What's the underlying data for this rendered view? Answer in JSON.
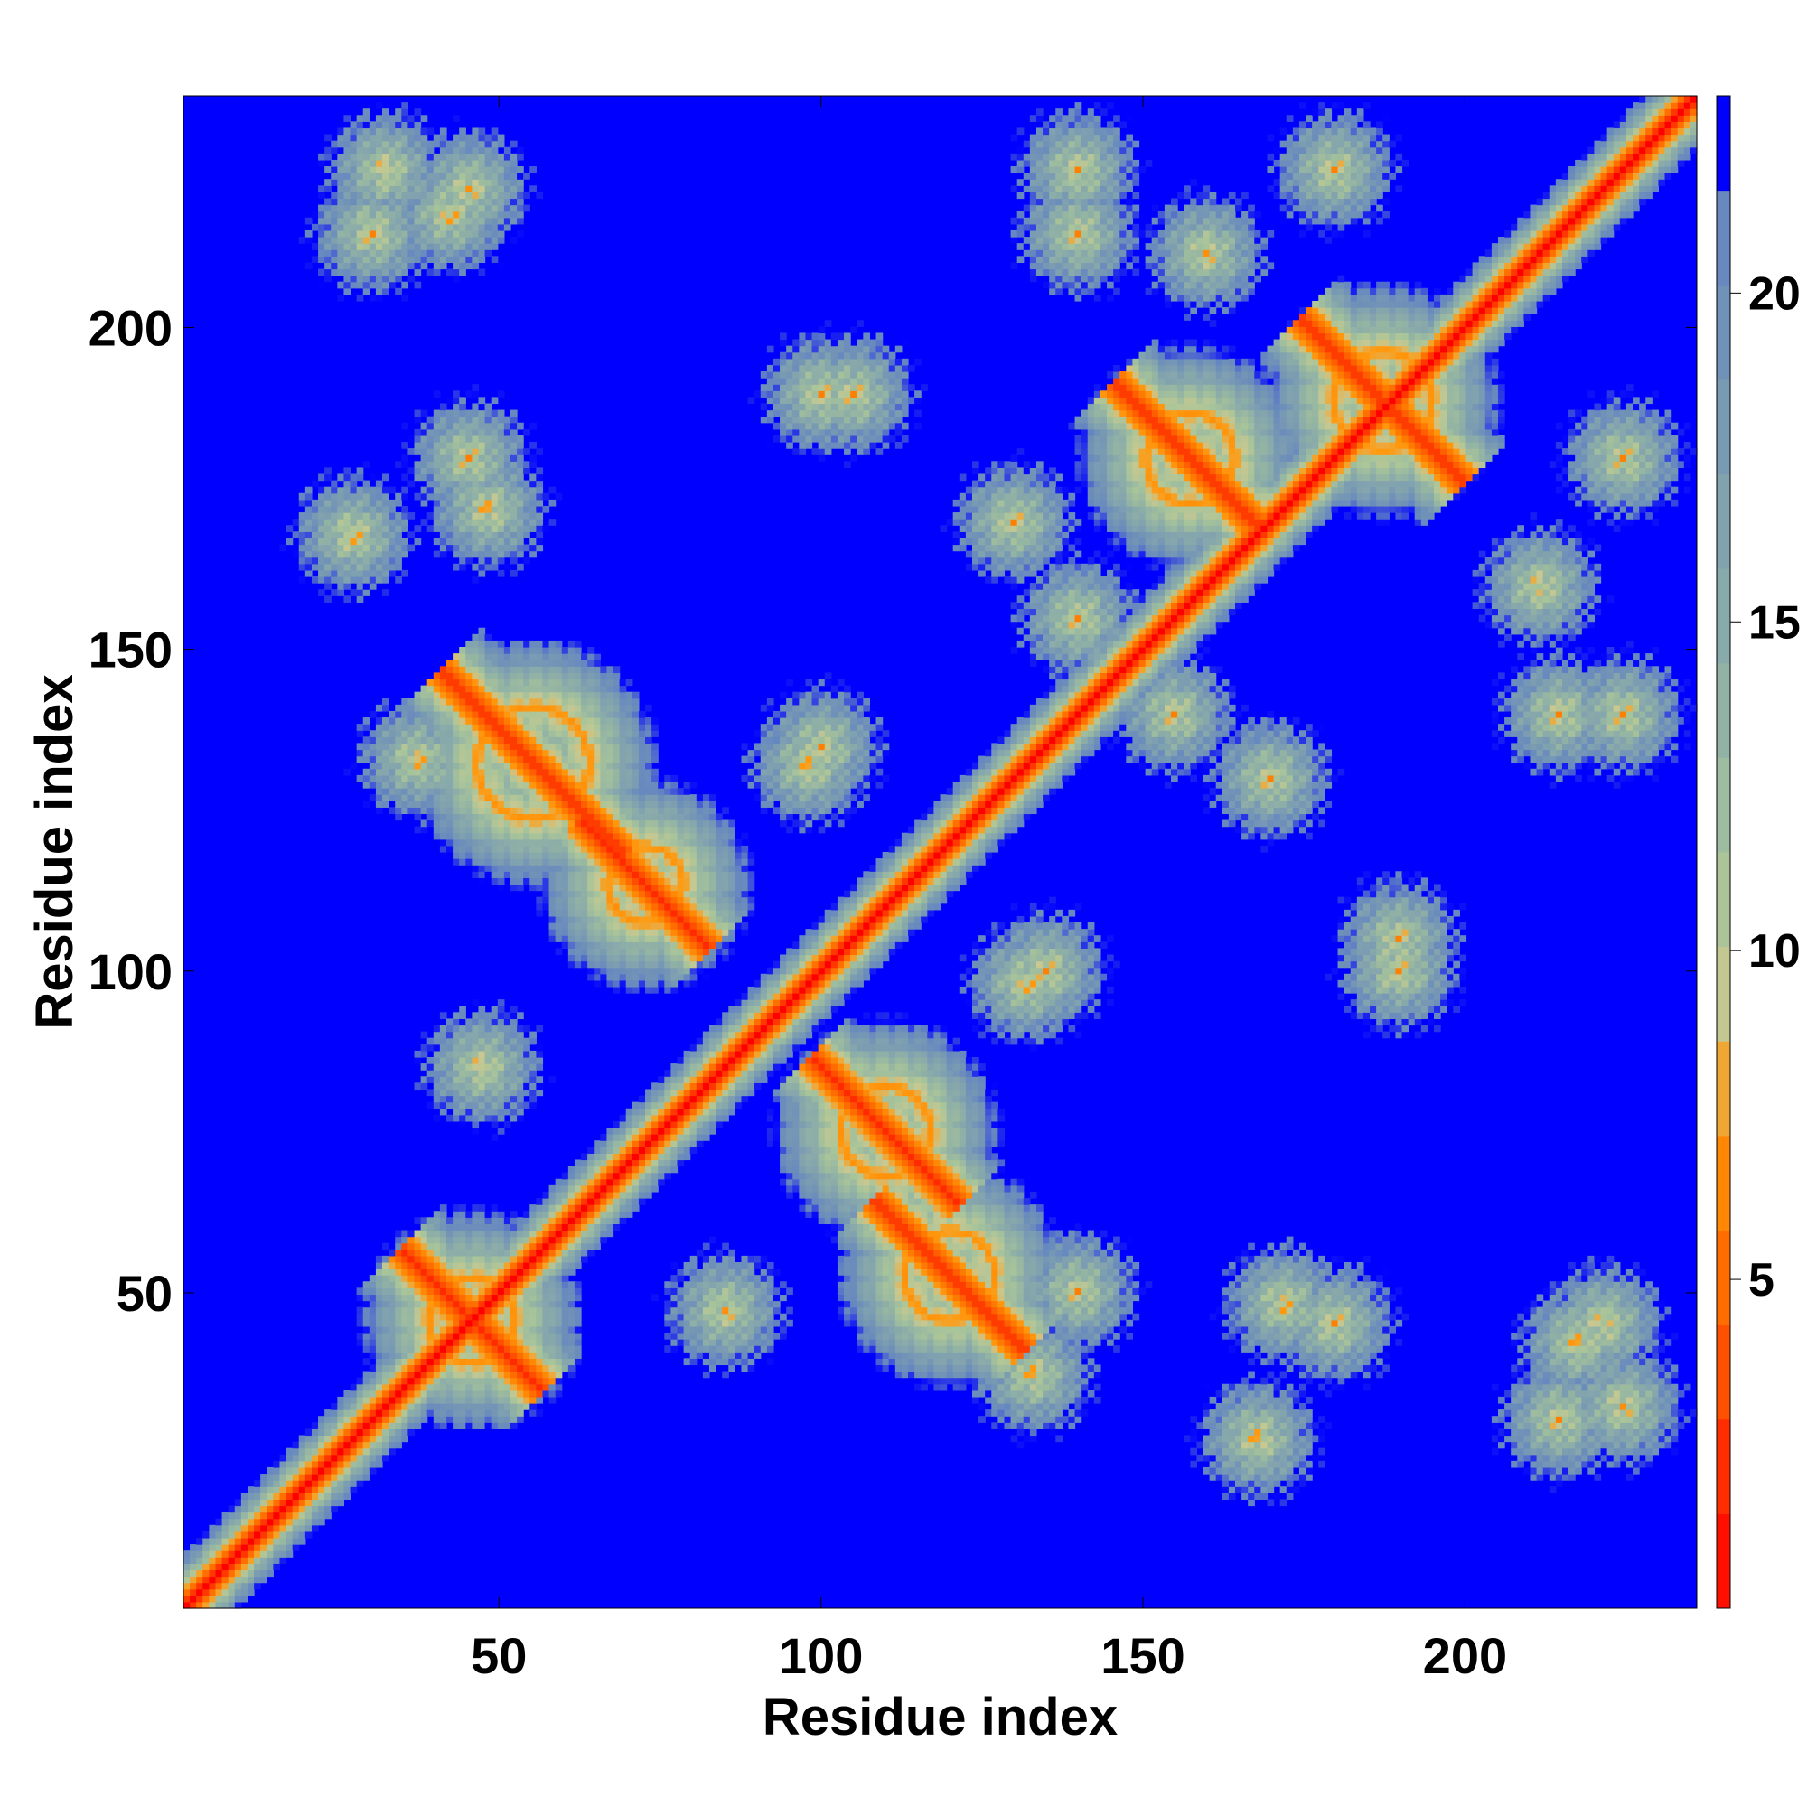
{
  "chart_data": {
    "type": "heatmap",
    "title": "",
    "xlabel": "Residue index",
    "ylabel": "Residue index",
    "xlim": [
      1,
      236
    ],
    "ylim": [
      1,
      236
    ],
    "x_ticks": [
      50,
      100,
      150,
      200
    ],
    "y_ticks": [
      50,
      100,
      150,
      200
    ],
    "colorbar": {
      "range": [
        0,
        23
      ],
      "ticks": [
        5,
        10,
        15,
        20
      ],
      "color_stops": [
        {
          "value": 0,
          "color": "#ff0000"
        },
        {
          "value": 2,
          "color": "#ff2a00"
        },
        {
          "value": 4,
          "color": "#ff5a00"
        },
        {
          "value": 6,
          "color": "#ff7f00"
        },
        {
          "value": 7.5,
          "color": "#ff9a10"
        },
        {
          "value": 9,
          "color": "#c9c890"
        },
        {
          "value": 11,
          "color": "#a8c49a"
        },
        {
          "value": 14,
          "color": "#8fb0a6"
        },
        {
          "value": 17,
          "color": "#7fa0b0"
        },
        {
          "value": 19.5,
          "color": "#6f90b8"
        },
        {
          "value": 21,
          "color": "#6688c0"
        },
        {
          "value": 23,
          "color": "#0000ff"
        }
      ],
      "saturated_color": "#0000ff"
    },
    "structure": {
      "diagonal": "distance 0 along i = j, increasing to about 20 within 8 residues",
      "helix_anti_diagonal_bands": [
        {
          "i_range": [
            36,
            55
          ],
          "j_range": [
            36,
            55
          ]
        },
        {
          "i_range": [
            50,
            60
          ],
          "j_range": [
            120,
            145
          ]
        },
        {
          "i_range": [
            65,
            80
          ],
          "j_range": [
            105,
            122
          ]
        },
        {
          "i_range": [
            100,
            120
          ],
          "j_range": [
            65,
            85
          ]
        },
        {
          "i_range": [
            110,
            130
          ],
          "j_range": [
            45,
            60
          ]
        },
        {
          "i_range": [
            150,
            165
          ],
          "j_range": [
            170,
            190
          ]
        },
        {
          "i_range": [
            180,
            195
          ],
          "j_range": [
            178,
            200
          ]
        }
      ],
      "off_diagonal_contact_blobs": [
        {
          "x": 32,
          "y": 225
        },
        {
          "x": 45,
          "y": 222
        },
        {
          "x": 27,
          "y": 168
        },
        {
          "x": 48,
          "y": 172
        },
        {
          "x": 37,
          "y": 133
        },
        {
          "x": 98,
          "y": 132
        },
        {
          "x": 105,
          "y": 190
        },
        {
          "x": 140,
          "y": 225
        },
        {
          "x": 180,
          "y": 225
        },
        {
          "x": 140,
          "y": 155
        },
        {
          "x": 170,
          "y": 130
        },
        {
          "x": 212,
          "y": 160
        },
        {
          "x": 215,
          "y": 140
        },
        {
          "x": 190,
          "y": 100
        },
        {
          "x": 135,
          "y": 100
        },
        {
          "x": 140,
          "y": 50
        },
        {
          "x": 180,
          "y": 45
        },
        {
          "x": 218,
          "y": 42
        },
        {
          "x": 168,
          "y": 27
        },
        {
          "x": 215,
          "y": 30
        },
        {
          "x": 85,
          "y": 47
        },
        {
          "x": 68,
          "y": 110
        }
      ]
    }
  }
}
